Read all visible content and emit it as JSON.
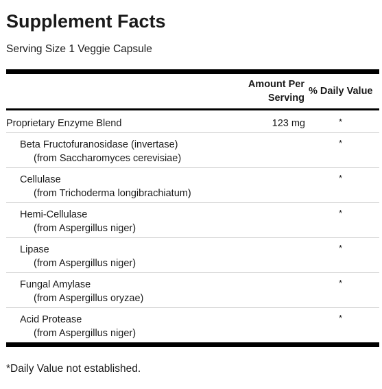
{
  "title": "Supplement Facts",
  "serving_size": "Serving Size 1 Veggie Capsule",
  "header": {
    "amount_line1": "Amount Per",
    "amount_line2": "Serving",
    "daily_value": "% Daily Value"
  },
  "rows": [
    {
      "name": "Proprietary Enzyme Blend",
      "source": "",
      "amount": "123 mg",
      "dv": "*"
    },
    {
      "name": "Beta Fructofuranosidase (invertase)",
      "source": "(from Saccharomyces cerevisiae)",
      "amount": "",
      "dv": "*"
    },
    {
      "name": "Cellulase",
      "source": "(from Trichoderma longibrachiatum)",
      "amount": "",
      "dv": "*"
    },
    {
      "name": "Hemi-Cellulase",
      "source": "(from Aspergillus niger)",
      "amount": "",
      "dv": "*"
    },
    {
      "name": "Lipase",
      "source": "(from Aspergillus niger)",
      "amount": "",
      "dv": "*"
    },
    {
      "name": "Fungal Amylase",
      "source": "(from Aspergillus oryzae)",
      "amount": "",
      "dv": "*"
    },
    {
      "name": "Acid Protease",
      "source": "(from Aspergillus niger)",
      "amount": "",
      "dv": "*"
    }
  ],
  "footnote": "*Daily Value not established."
}
